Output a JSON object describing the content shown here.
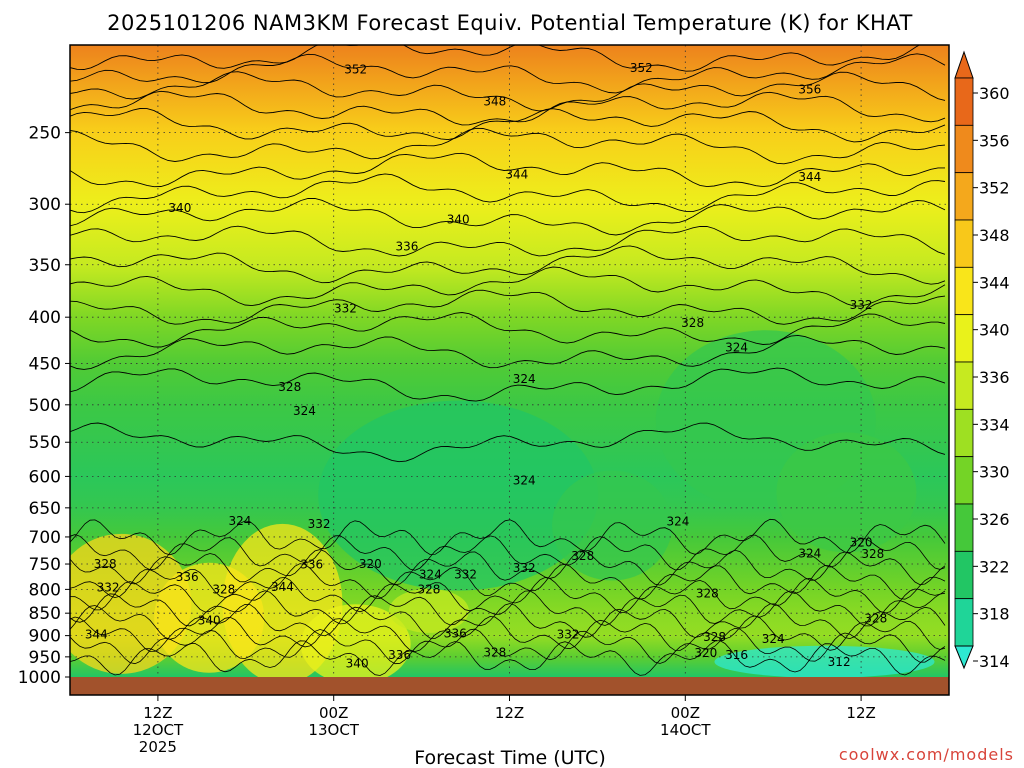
{
  "chart_data": {
    "type": "heatmap",
    "title": "2025101206 NAM3KM Forecast Equiv. Potential Temperature (K) for KHAT",
    "xlabel": "Forecast Time (UTC)",
    "ylabel": "",
    "watermark": "coolwx.com/models",
    "y_scale": "log-pressure",
    "ylim": [
      1000,
      200
    ],
    "xlim_hours": [
      0,
      60
    ],
    "grid": true,
    "legend": "colorbar-right",
    "y_ticks": [
      250,
      300,
      350,
      400,
      450,
      500,
      550,
      600,
      650,
      700,
      750,
      800,
      850,
      900,
      950,
      1000
    ],
    "x_ticks": [
      {
        "hour": 6,
        "line1": "12Z",
        "line2": "12OCT",
        "line3": "2025"
      },
      {
        "hour": 18,
        "line1": "00Z",
        "line2": "13OCT",
        "line3": ""
      },
      {
        "hour": 30,
        "line1": "12Z",
        "line2": "",
        "line3": ""
      },
      {
        "hour": 42,
        "line1": "00Z",
        "line2": "14OCT",
        "line3": ""
      },
      {
        "hour": 54,
        "line1": "12Z",
        "line2": "",
        "line3": ""
      }
    ],
    "colorbar": {
      "labels": [
        360,
        356,
        352,
        348,
        344,
        340,
        336,
        334,
        330,
        326,
        322,
        318,
        314
      ],
      "colors": [
        "#e8681a",
        "#ef8a1c",
        "#f4a81c",
        "#f8c81a",
        "#f9e51a",
        "#e9f21b",
        "#c6ea20",
        "#9ee022",
        "#74d426",
        "#45c83a",
        "#22c664",
        "#1fd598",
        "#2ee8d2"
      ]
    },
    "theta_e_profile": [
      {
        "p": 200,
        "theta": 357
      },
      {
        "p": 250,
        "theta": 347
      },
      {
        "p": 300,
        "theta": 341
      },
      {
        "p": 350,
        "theta": 336
      },
      {
        "p": 400,
        "theta": 331
      },
      {
        "p": 450,
        "theta": 327
      },
      {
        "p": 500,
        "theta": 325
      },
      {
        "p": 550,
        "theta": 324
      },
      {
        "p": 600,
        "theta": 323
      },
      {
        "p": 650,
        "theta": 324
      },
      {
        "p": 700,
        "theta": 326
      },
      {
        "p": 750,
        "theta": 328
      },
      {
        "p": 800,
        "theta": 330
      },
      {
        "p": 850,
        "theta": 332
      },
      {
        "p": 900,
        "theta": 333
      },
      {
        "p": 950,
        "theta": 328
      },
      {
        "p": 1000,
        "theta": 322
      }
    ],
    "contour_labels": [
      {
        "hour": 19.5,
        "p": 213,
        "value": "352"
      },
      {
        "hour": 39,
        "p": 212,
        "value": "352"
      },
      {
        "hour": 50.5,
        "p": 224,
        "value": "356"
      },
      {
        "hour": 29,
        "p": 231,
        "value": "348"
      },
      {
        "hour": 30.5,
        "p": 278,
        "value": "344"
      },
      {
        "hour": 50.5,
        "p": 280,
        "value": "344"
      },
      {
        "hour": 7.5,
        "p": 303,
        "value": "340"
      },
      {
        "hour": 26.5,
        "p": 312,
        "value": "340"
      },
      {
        "hour": 23,
        "p": 334,
        "value": "336"
      },
      {
        "hour": 18.8,
        "p": 391,
        "value": "332"
      },
      {
        "hour": 54,
        "p": 388,
        "value": "332"
      },
      {
        "hour": 42.5,
        "p": 406,
        "value": "328"
      },
      {
        "hour": 45.5,
        "p": 432,
        "value": "324"
      },
      {
        "hour": 31,
        "p": 468,
        "value": "324"
      },
      {
        "hour": 15,
        "p": 478,
        "value": "328"
      },
      {
        "hour": 16,
        "p": 508,
        "value": "324"
      },
      {
        "hour": 31,
        "p": 606,
        "value": "324"
      },
      {
        "hour": 11.6,
        "p": 672,
        "value": "324"
      },
      {
        "hour": 17,
        "p": 677,
        "value": "332"
      },
      {
        "hour": 41.5,
        "p": 673,
        "value": "324"
      },
      {
        "hour": 54,
        "p": 710,
        "value": "320"
      },
      {
        "hour": 35,
        "p": 735,
        "value": "328"
      },
      {
        "hour": 50.5,
        "p": 730,
        "value": "324"
      },
      {
        "hour": 54.8,
        "p": 731,
        "value": "328"
      },
      {
        "hour": 2.4,
        "p": 750,
        "value": "328"
      },
      {
        "hour": 16.5,
        "p": 751,
        "value": "336"
      },
      {
        "hour": 20.5,
        "p": 750,
        "value": "320"
      },
      {
        "hour": 8,
        "p": 775,
        "value": "336"
      },
      {
        "hour": 24.6,
        "p": 770,
        "value": "324"
      },
      {
        "hour": 27,
        "p": 770,
        "value": "332"
      },
      {
        "hour": 31,
        "p": 758,
        "value": "332"
      },
      {
        "hour": 2.6,
        "p": 796,
        "value": "332"
      },
      {
        "hour": 10.5,
        "p": 800,
        "value": "328"
      },
      {
        "hour": 14.5,
        "p": 795,
        "value": "344"
      },
      {
        "hour": 24.5,
        "p": 800,
        "value": "328"
      },
      {
        "hour": 43.5,
        "p": 808,
        "value": "328"
      },
      {
        "hour": 9.5,
        "p": 866,
        "value": "340"
      },
      {
        "hour": 55,
        "p": 862,
        "value": "328"
      },
      {
        "hour": 1.8,
        "p": 897,
        "value": "344"
      },
      {
        "hour": 26.3,
        "p": 895,
        "value": "336"
      },
      {
        "hour": 34,
        "p": 897,
        "value": "332"
      },
      {
        "hour": 44,
        "p": 903,
        "value": "328"
      },
      {
        "hour": 48,
        "p": 908,
        "value": "324"
      },
      {
        "hour": 29,
        "p": 939,
        "value": "328"
      },
      {
        "hour": 43.4,
        "p": 941,
        "value": "320"
      },
      {
        "hour": 45.5,
        "p": 945,
        "value": "316"
      },
      {
        "hour": 52.5,
        "p": 963,
        "value": "312"
      },
      {
        "hour": 22.5,
        "p": 946,
        "value": "336"
      },
      {
        "hour": 19.6,
        "p": 966,
        "value": "340"
      }
    ]
  }
}
